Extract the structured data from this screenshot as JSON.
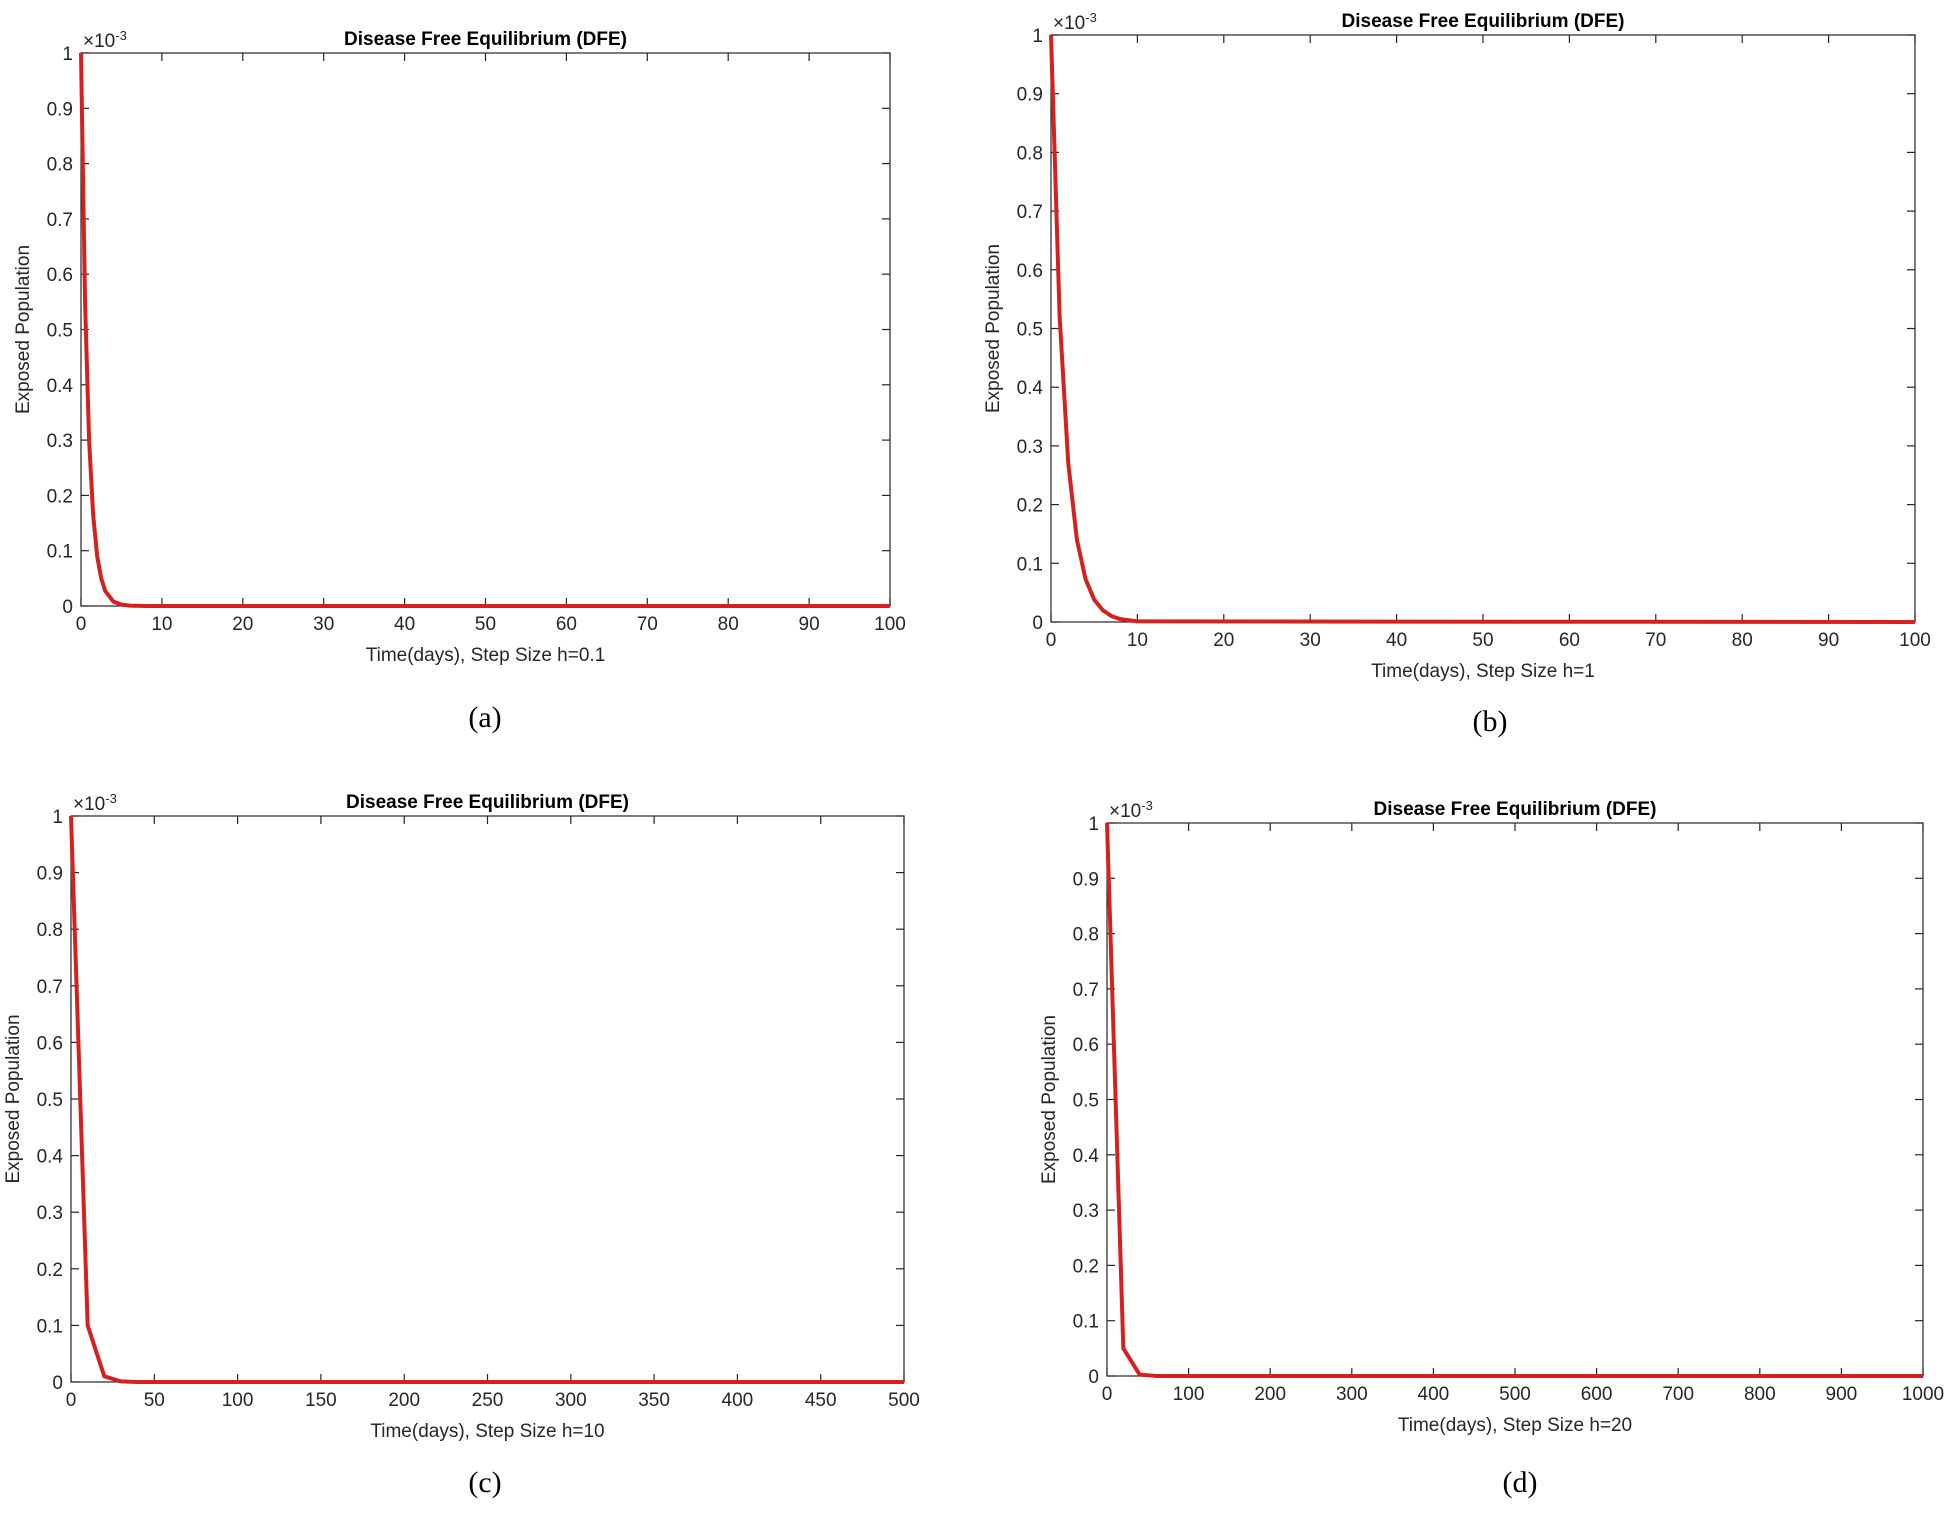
{
  "chart_data": [
    {
      "type": "line",
      "title": "Disease Free Equilibrium (DFE)",
      "xlabel": "Time(days), Step Size h=0.1",
      "ylabel": "Exposed Population",
      "multiplier": "×10",
      "multiplier_exponent": "-3",
      "panel_label": "(a)",
      "color": "#d62020",
      "x": [
        0,
        0.5,
        1,
        1.5,
        2,
        2.5,
        3,
        4,
        5,
        6,
        8,
        100
      ],
      "values": [
        1,
        0.55,
        0.3,
        0.165,
        0.09,
        0.05,
        0.027,
        0.008,
        0.0025,
        0.0007,
        0.0001,
        0
      ],
      "xlim": [
        0,
        100
      ],
      "xticks": [
        0,
        10,
        20,
        30,
        40,
        50,
        60,
        70,
        80,
        90,
        100
      ],
      "ylim": [
        0,
        1
      ],
      "yticks": [
        0,
        0.1,
        0.2,
        0.3,
        0.4,
        0.5,
        0.6,
        0.7,
        0.8,
        0.9,
        1
      ]
    },
    {
      "type": "line",
      "title": "Disease Free Equilibrium (DFE)",
      "xlabel": "Time(days), Step Size h=1",
      "ylabel": "Exposed Population",
      "multiplier": "×10",
      "multiplier_exponent": "-3",
      "panel_label": "(b)",
      "color": "#d62020",
      "x": [
        0,
        1,
        2,
        3,
        4,
        5,
        6,
        7,
        8,
        9,
        10,
        100
      ],
      "values": [
        1,
        0.52,
        0.27,
        0.14,
        0.073,
        0.038,
        0.02,
        0.01,
        0.005,
        0.003,
        0.001,
        0
      ],
      "xlim": [
        0,
        100
      ],
      "xticks": [
        0,
        10,
        20,
        30,
        40,
        50,
        60,
        70,
        80,
        90,
        100
      ],
      "ylim": [
        0,
        1
      ],
      "yticks": [
        0,
        0.1,
        0.2,
        0.3,
        0.4,
        0.5,
        0.6,
        0.7,
        0.8,
        0.9,
        1
      ]
    },
    {
      "type": "line",
      "title": "Disease Free Equilibrium (DFE)",
      "xlabel": "Time(days), Step Size h=10",
      "ylabel": "Exposed Population",
      "multiplier": "×10",
      "multiplier_exponent": "-3",
      "panel_label": "(c)",
      "color": "#d62020",
      "x": [
        0,
        10,
        20,
        30,
        40,
        500
      ],
      "values": [
        1,
        0.1,
        0.01,
        0.001,
        0.0001,
        0
      ],
      "xlim": [
        0,
        500
      ],
      "xticks": [
        0,
        50,
        100,
        150,
        200,
        250,
        300,
        350,
        400,
        450,
        500
      ],
      "ylim": [
        0,
        1
      ],
      "yticks": [
        0,
        0.1,
        0.2,
        0.3,
        0.4,
        0.5,
        0.6,
        0.7,
        0.8,
        0.9,
        1
      ]
    },
    {
      "type": "line",
      "title": "Disease Free Equilibrium (DFE)",
      "xlabel": "Time(days), Step Size h=20",
      "ylabel": "Exposed Population",
      "multiplier": "×10",
      "multiplier_exponent": "-3",
      "panel_label": "(d)",
      "color": "#d62020",
      "x": [
        0,
        20,
        40,
        60,
        1000
      ],
      "values": [
        1,
        0.05,
        0.0025,
        0.0001,
        0
      ],
      "xlim": [
        0,
        1000
      ],
      "xticks": [
        0,
        100,
        200,
        300,
        400,
        500,
        600,
        700,
        800,
        900,
        1000
      ],
      "ylim": [
        0,
        1
      ],
      "yticks": [
        0,
        0.1,
        0.2,
        0.3,
        0.4,
        0.5,
        0.6,
        0.7,
        0.8,
        0.9,
        1
      ]
    }
  ]
}
